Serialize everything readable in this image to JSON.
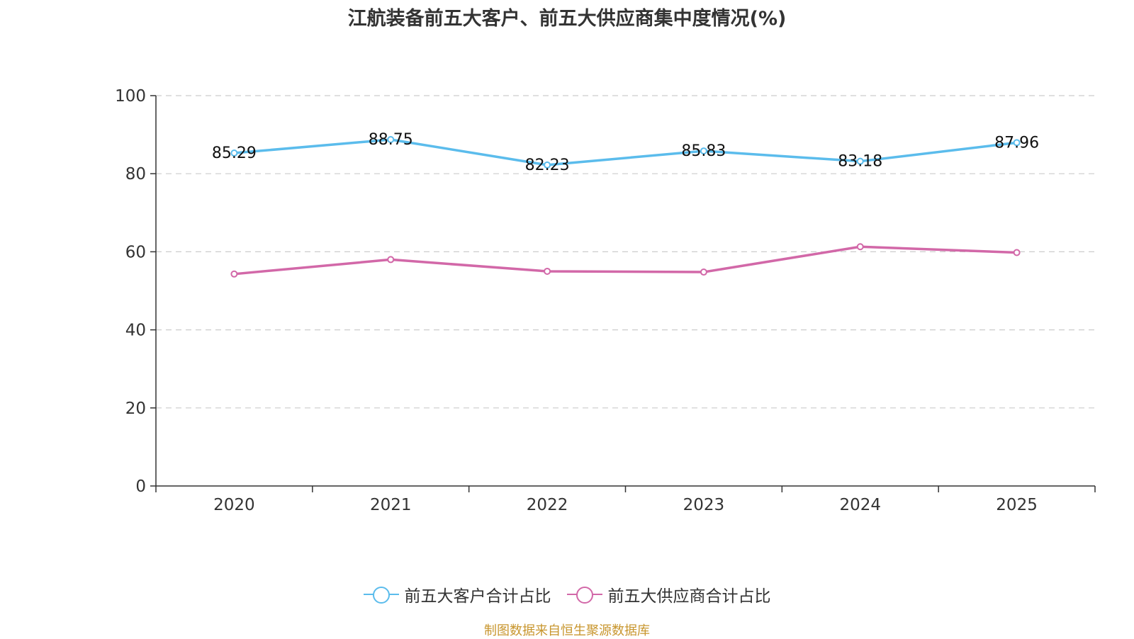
{
  "chart_data": {
    "type": "line",
    "title": "江航装备前五大客户、前五大供应商集中度情况(%)",
    "categories": [
      "2020",
      "2021",
      "2022",
      "2023",
      "2024",
      "2025"
    ],
    "ylim": [
      0,
      100
    ],
    "yticks": [
      "0",
      "20",
      "40",
      "60",
      "80",
      "100"
    ],
    "grid": true,
    "legend_position": "bottom",
    "series": [
      {
        "name": "前五大客户合计占比",
        "color": "#5bbcec",
        "values": [
          85.29,
          88.75,
          82.23,
          85.83,
          83.18,
          87.96
        ],
        "labels": [
          "85.29",
          "88.75",
          "82.23",
          "85.83",
          "83.18",
          "87.96"
        ],
        "show_labels": true
      },
      {
        "name": "前五大供应商合计占比",
        "color": "#d268a8",
        "values": [
          54.3,
          58.0,
          55.0,
          54.8,
          61.3,
          59.8
        ],
        "show_labels": false
      }
    ]
  },
  "source": "制图数据来自恒生聚源数据库"
}
